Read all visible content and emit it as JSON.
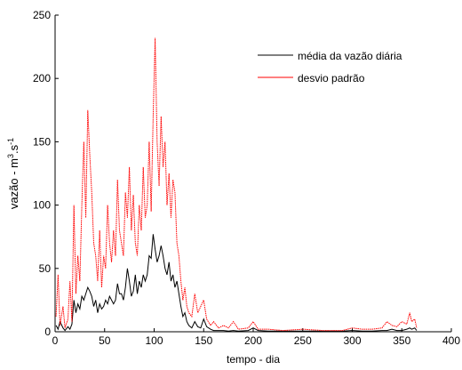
{
  "chart_data": {
    "type": "line",
    "xlabel": "tempo - dia",
    "ylabel_parts": [
      "vazão - m",
      "3",
      ".s",
      "-1"
    ],
    "xlim": [
      0,
      400
    ],
    "xticks": [
      0,
      50,
      100,
      150,
      200,
      250,
      300,
      350,
      400
    ],
    "ylim": [
      0,
      250
    ],
    "yticks": [
      0,
      50,
      100,
      150,
      200,
      250
    ],
    "legend": "upper right",
    "x": [
      1,
      3,
      5,
      8,
      10,
      13,
      15,
      17,
      19,
      21,
      23,
      25,
      27,
      29,
      31,
      33,
      35,
      37,
      39,
      41,
      43,
      45,
      47,
      49,
      51,
      53,
      55,
      57,
      59,
      61,
      63,
      65,
      67,
      69,
      71,
      73,
      75,
      77,
      79,
      81,
      83,
      85,
      87,
      89,
      91,
      93,
      95,
      97,
      99,
      101,
      103,
      105,
      107,
      109,
      111,
      113,
      115,
      117,
      119,
      121,
      123,
      125,
      127,
      129,
      131,
      133,
      135,
      138,
      141,
      144,
      147,
      150,
      153,
      157,
      160,
      165,
      170,
      175,
      180,
      185,
      195,
      200,
      205,
      215,
      230,
      250,
      270,
      290,
      300,
      310,
      320,
      330,
      335,
      340,
      345,
      350,
      355,
      358,
      360,
      363,
      365
    ],
    "series": [
      {
        "name": "média da vazão diária",
        "color": "#000000",
        "values": [
          5,
          2,
          8,
          3,
          1,
          4,
          2,
          6,
          25,
          15,
          22,
          18,
          28,
          25,
          30,
          35,
          32,
          28,
          20,
          25,
          15,
          22,
          18,
          20,
          25,
          22,
          28,
          25,
          22,
          25,
          38,
          30,
          30,
          25,
          35,
          50,
          40,
          28,
          32,
          45,
          30,
          40,
          35,
          45,
          40,
          45,
          60,
          58,
          77,
          65,
          55,
          60,
          68,
          60,
          50,
          45,
          55,
          40,
          45,
          35,
          40,
          30,
          20,
          12,
          15,
          8,
          5,
          3,
          8,
          4,
          3,
          10,
          4,
          2,
          1,
          1,
          1,
          0.5,
          1,
          0.5,
          1,
          3,
          1,
          0.5,
          0.5,
          0.5,
          0.5,
          0.5,
          1,
          0.5,
          0.5,
          1,
          1,
          2,
          1,
          1,
          2,
          3,
          2,
          3,
          1
        ]
      },
      {
        "name": "desvio padrão",
        "color": "#ff0000",
        "values": [
          12,
          45,
          5,
          20,
          3,
          10,
          40,
          8,
          100,
          30,
          60,
          40,
          100,
          150,
          90,
          175,
          140,
          110,
          70,
          60,
          40,
          80,
          35,
          60,
          50,
          100,
          70,
          55,
          80,
          60,
          120,
          80,
          70,
          60,
          110,
          90,
          130,
          80,
          108,
          70,
          60,
          100,
          80,
          130,
          90,
          100,
          150,
          95,
          170,
          232,
          150,
          115,
          170,
          130,
          150,
          100,
          125,
          90,
          120,
          110,
          70,
          60,
          40,
          25,
          35,
          20,
          15,
          12,
          30,
          15,
          20,
          25,
          10,
          5,
          8,
          3,
          5,
          3,
          8,
          2,
          3,
          8,
          2,
          2,
          1,
          2,
          1,
          1,
          3,
          2,
          2,
          3,
          8,
          5,
          4,
          8,
          6,
          15,
          8,
          10,
          3
        ]
      }
    ]
  }
}
